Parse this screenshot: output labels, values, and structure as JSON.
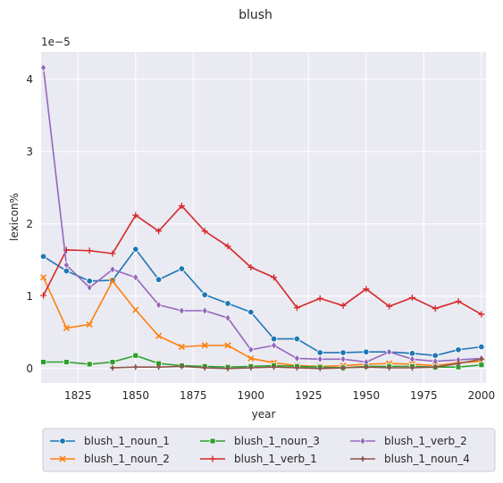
{
  "chart_data": {
    "type": "line",
    "title": "blush",
    "xlabel": "year",
    "ylabel": "lexicon%",
    "y_multiplier_label": "1e−5",
    "xlim": [
      1809,
      2002
    ],
    "ylim": [
      -0.2,
      4.38
    ],
    "xticks": [
      1825,
      1850,
      1875,
      1900,
      1925,
      1950,
      1975,
      2000
    ],
    "yticks": [
      0,
      1,
      2,
      3,
      4
    ],
    "grid": true,
    "legend_position": "bottom",
    "series": [
      {
        "name": "blush_1_noun_1",
        "color": "#1f77b4",
        "marker": "circle",
        "x": [
          1810,
          1820,
          1830,
          1840,
          1850,
          1860,
          1870,
          1880,
          1890,
          1900,
          1910,
          1920,
          1930,
          1940,
          1950,
          1960,
          1970,
          1980,
          1990,
          2000
        ],
        "y": [
          1.55,
          1.35,
          1.21,
          1.22,
          1.65,
          1.23,
          1.38,
          1.02,
          0.9,
          0.78,
          0.41,
          0.41,
          0.22,
          0.22,
          0.23,
          0.23,
          0.21,
          0.18,
          0.26,
          0.3
        ]
      },
      {
        "name": "blush_1_noun_2",
        "color": "#ff7f0e",
        "marker": "x",
        "x": [
          1810,
          1820,
          1830,
          1840,
          1850,
          1860,
          1870,
          1880,
          1890,
          1900,
          1910,
          1920,
          1930,
          1940,
          1950,
          1960,
          1970,
          1980,
          1990,
          2000
        ],
        "y": [
          1.26,
          0.56,
          0.61,
          1.21,
          0.81,
          0.45,
          0.3,
          0.32,
          0.32,
          0.14,
          0.08,
          0.04,
          0.03,
          0.04,
          0.06,
          0.07,
          0.06,
          0.04,
          0.08,
          0.1
        ]
      },
      {
        "name": "blush_1_noun_3",
        "color": "#2ca02c",
        "marker": "square",
        "x": [
          1810,
          1820,
          1830,
          1840,
          1850,
          1860,
          1870,
          1880,
          1890,
          1900,
          1910,
          1920,
          1930,
          1940,
          1950,
          1960,
          1970,
          1980,
          1990,
          2000
        ],
        "y": [
          0.09,
          0.09,
          0.06,
          0.09,
          0.18,
          0.07,
          0.04,
          0.03,
          0.02,
          0.03,
          0.04,
          0.03,
          0.02,
          0.01,
          0.03,
          0.03,
          0.03,
          0.02,
          0.02,
          0.05
        ]
      },
      {
        "name": "blush_1_verb_1",
        "color": "#d62728",
        "marker": "plus",
        "x": [
          1810,
          1820,
          1830,
          1840,
          1850,
          1860,
          1870,
          1880,
          1890,
          1900,
          1910,
          1920,
          1930,
          1940,
          1950,
          1960,
          1970,
          1980,
          1990,
          2000
        ],
        "y": [
          1.01,
          1.64,
          1.63,
          1.59,
          2.12,
          1.9,
          2.25,
          1.9,
          1.69,
          1.4,
          1.26,
          0.84,
          0.97,
          0.87,
          1.1,
          0.86,
          0.98,
          0.83,
          0.93,
          0.75
        ]
      },
      {
        "name": "blush_1_verb_2",
        "color": "#9467bd",
        "marker": "diamond",
        "x": [
          1810,
          1820,
          1830,
          1840,
          1850,
          1860,
          1870,
          1880,
          1890,
          1900,
          1910,
          1920,
          1930,
          1940,
          1950,
          1960,
          1970,
          1980,
          1990,
          2000
        ],
        "y": [
          4.16,
          1.43,
          1.12,
          1.37,
          1.26,
          0.88,
          0.8,
          0.8,
          0.7,
          0.26,
          0.32,
          0.14,
          0.13,
          0.13,
          0.09,
          0.23,
          0.13,
          0.1,
          0.12,
          0.14
        ]
      },
      {
        "name": "blush_1_noun_4",
        "color": "#8c564b",
        "marker": "star",
        "x": [
          1840,
          1850,
          1860,
          1870,
          1880,
          1890,
          1900,
          1910,
          1920,
          1930,
          1940,
          1950,
          1960,
          1970,
          1980,
          1990,
          2000
        ],
        "y": [
          0.01,
          0.02,
          0.02,
          0.03,
          0.01,
          0.0,
          0.01,
          0.02,
          0.01,
          0.0,
          0.01,
          0.02,
          0.01,
          0.01,
          0.02,
          0.07,
          0.13
        ]
      }
    ]
  }
}
